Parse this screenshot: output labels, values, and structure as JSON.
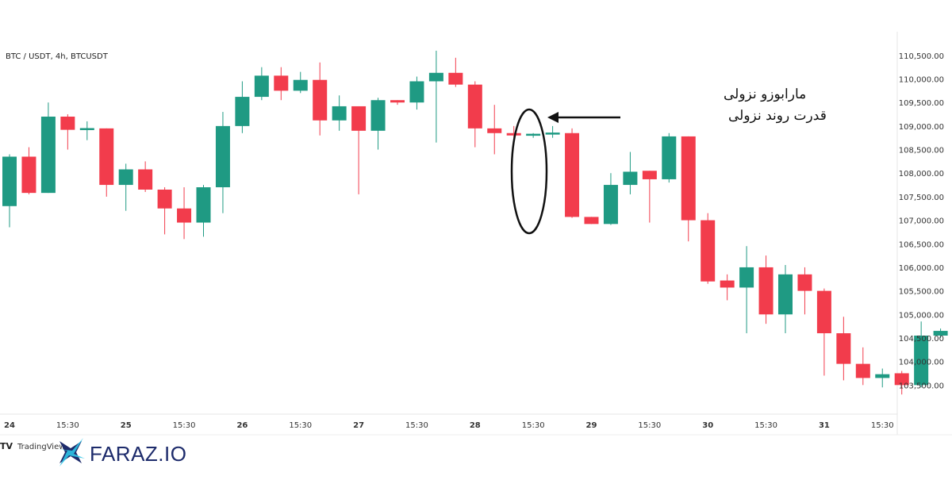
{
  "chart_data": {
    "type": "candlestick",
    "symbol_label": "BTC / USDT, 4h, BTCUSDT",
    "ylim": [
      103000,
      110750
    ],
    "y_ticks": [
      "110,500.00",
      "110,000.00",
      "109,500.00",
      "109,000.00",
      "108,500.00",
      "108,000.00",
      "107,500.00",
      "107,000.00",
      "106,500.00",
      "106,000.00",
      "105,500.00",
      "105,000.00",
      "104,500.00",
      "104,000.00",
      "103,500.00"
    ],
    "x_ticks": [
      {
        "label": "24",
        "bold": true
      },
      {
        "label": "15:30",
        "bold": false
      },
      {
        "label": "25",
        "bold": true
      },
      {
        "label": "15:30",
        "bold": false
      },
      {
        "label": "26",
        "bold": true
      },
      {
        "label": "15:30",
        "bold": false
      },
      {
        "label": "27",
        "bold": true
      },
      {
        "label": "15:30",
        "bold": false
      },
      {
        "label": "28",
        "bold": true
      },
      {
        "label": "15:30",
        "bold": false
      },
      {
        "label": "29",
        "bold": true
      },
      {
        "label": "15:30",
        "bold": false
      },
      {
        "label": "30",
        "bold": true
      },
      {
        "label": "15:30",
        "bold": false
      },
      {
        "label": "31",
        "bold": true
      },
      {
        "label": "15:30",
        "bold": false
      }
    ],
    "candles": [
      {
        "o": 107300,
        "h": 108400,
        "l": 106850,
        "c": 108350
      },
      {
        "o": 108350,
        "h": 108550,
        "l": 107550,
        "c": 107580
      },
      {
        "o": 107580,
        "h": 109500,
        "l": 107580,
        "c": 109200
      },
      {
        "o": 109200,
        "h": 109250,
        "l": 108500,
        "c": 108920
      },
      {
        "o": 108920,
        "h": 109100,
        "l": 108700,
        "c": 108950
      },
      {
        "o": 108950,
        "h": 108950,
        "l": 107500,
        "c": 107750
      },
      {
        "o": 107750,
        "h": 108200,
        "l": 107200,
        "c": 108080
      },
      {
        "o": 108080,
        "h": 108250,
        "l": 107600,
        "c": 107650
      },
      {
        "o": 107650,
        "h": 107700,
        "l": 106700,
        "c": 107250
      },
      {
        "o": 107250,
        "h": 107700,
        "l": 106600,
        "c": 106950
      },
      {
        "o": 106950,
        "h": 107750,
        "l": 106650,
        "c": 107700
      },
      {
        "o": 107700,
        "h": 109300,
        "l": 107150,
        "c": 109000
      },
      {
        "o": 109000,
        "h": 109950,
        "l": 108850,
        "c": 109620
      },
      {
        "o": 109620,
        "h": 110250,
        "l": 109550,
        "c": 110070
      },
      {
        "o": 110070,
        "h": 110250,
        "l": 109550,
        "c": 109750
      },
      {
        "o": 109750,
        "h": 110150,
        "l": 109700,
        "c": 109980
      },
      {
        "o": 109980,
        "h": 110350,
        "l": 108800,
        "c": 109120
      },
      {
        "o": 109120,
        "h": 109650,
        "l": 108900,
        "c": 109420
      },
      {
        "o": 109420,
        "h": 109400,
        "l": 107550,
        "c": 108900
      },
      {
        "o": 108900,
        "h": 109600,
        "l": 108500,
        "c": 109550
      },
      {
        "o": 109550,
        "h": 109550,
        "l": 109450,
        "c": 109500
      },
      {
        "o": 109500,
        "h": 110050,
        "l": 109350,
        "c": 109950
      },
      {
        "o": 109950,
        "h": 110600,
        "l": 108650,
        "c": 110130
      },
      {
        "o": 110130,
        "h": 110450,
        "l": 109830,
        "c": 109880
      },
      {
        "o": 109880,
        "h": 109950,
        "l": 108550,
        "c": 108950
      },
      {
        "o": 108950,
        "h": 109450,
        "l": 108400,
        "c": 108850
      },
      {
        "o": 108850,
        "h": 109000,
        "l": 108750,
        "c": 108800
      },
      {
        "o": 108800,
        "h": 108850,
        "l": 108750,
        "c": 108830
      },
      {
        "o": 108830,
        "h": 109000,
        "l": 108750,
        "c": 108850
      },
      {
        "o": 108850,
        "h": 108950,
        "l": 107050,
        "c": 107070
      },
      {
        "o": 107070,
        "h": 107050,
        "l": 106950,
        "c": 106920
      },
      {
        "o": 106920,
        "h": 108000,
        "l": 106900,
        "c": 107750
      },
      {
        "o": 107750,
        "h": 108450,
        "l": 107550,
        "c": 108030
      },
      {
        "o": 108050,
        "h": 108050,
        "l": 106950,
        "c": 107870
      },
      {
        "o": 107870,
        "h": 108850,
        "l": 107800,
        "c": 108780
      },
      {
        "o": 108780,
        "h": 108780,
        "l": 106550,
        "c": 107000
      },
      {
        "o": 107000,
        "h": 107150,
        "l": 105650,
        "c": 105700
      },
      {
        "o": 105720,
        "h": 105850,
        "l": 105300,
        "c": 105570
      },
      {
        "o": 105570,
        "h": 106450,
        "l": 104600,
        "c": 106000
      },
      {
        "o": 106000,
        "h": 106250,
        "l": 104800,
        "c": 105000
      },
      {
        "o": 105000,
        "h": 106050,
        "l": 104600,
        "c": 105850
      },
      {
        "o": 105850,
        "h": 106000,
        "l": 105000,
        "c": 105500
      },
      {
        "o": 105500,
        "h": 105550,
        "l": 103700,
        "c": 104600
      },
      {
        "o": 104600,
        "h": 104950,
        "l": 103600,
        "c": 103950
      },
      {
        "o": 103950,
        "h": 104300,
        "l": 103500,
        "c": 103650
      },
      {
        "o": 103650,
        "h": 103850,
        "l": 103450,
        "c": 103730
      },
      {
        "o": 103750,
        "h": 103800,
        "l": 103300,
        "c": 103500
      },
      {
        "o": 103500,
        "h": 104850,
        "l": 103450,
        "c": 104550
      },
      {
        "o": 104550,
        "h": 104700,
        "l": 104500,
        "c": 104650
      }
    ],
    "colors": {
      "up": "#1f9a83",
      "down": "#f23c4c"
    },
    "annotation": {
      "line1": "مارابوزو نزولی",
      "line2": "قدرت روند نزولی"
    }
  },
  "watermark": {
    "tradingview_text": "TradingView"
  },
  "brand": {
    "name": "FARAZ.IO",
    "colors": {
      "primary": "#1d2b6b",
      "accent": "#2fc3e6"
    }
  }
}
